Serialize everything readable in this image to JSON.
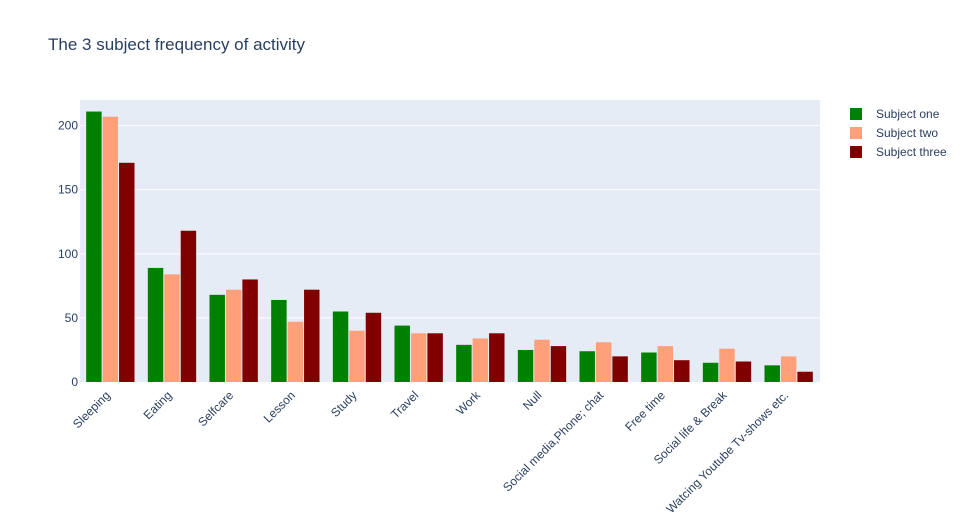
{
  "chart_data": {
    "type": "bar",
    "title": "The 3 subject frequency of activity",
    "xlabel": "",
    "ylabel": "",
    "ylim": [
      0,
      220
    ],
    "yticks": [
      0,
      50,
      100,
      150,
      200
    ],
    "grid": true,
    "legend_position": "top-right",
    "categories": [
      "Sleeping",
      "Eating",
      "Selfcare",
      "Lesson",
      "Study",
      "Travel",
      "Work",
      "Null",
      "Social media,Phone; chat",
      "Free time",
      "Social life & Break",
      "Watcing Youtube Tv-shows etc."
    ],
    "series": [
      {
        "name": "Subject one",
        "color": "#008000",
        "values": [
          211,
          89,
          68,
          64,
          55,
          44,
          29,
          25,
          24,
          23,
          15,
          13
        ]
      },
      {
        "name": "Subject two",
        "color": "#FFA07A",
        "values": [
          207,
          84,
          72,
          47,
          40,
          38,
          34,
          33,
          31,
          28,
          26,
          20
        ]
      },
      {
        "name": "Subject three",
        "color": "#800000",
        "values": [
          171,
          118,
          80,
          72,
          54,
          38,
          38,
          28,
          20,
          17,
          16,
          8
        ]
      }
    ]
  }
}
